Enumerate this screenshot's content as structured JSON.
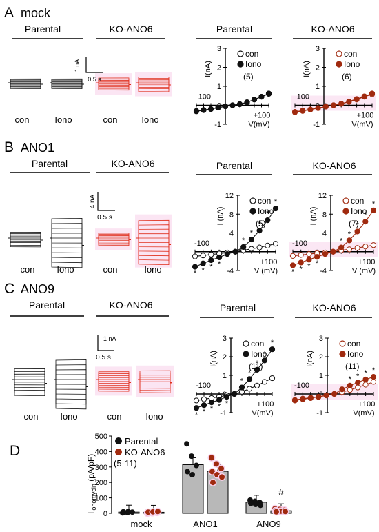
{
  "colors": {
    "parental": "#111111",
    "ko": "#a02a0f",
    "ko_trace": "#e0301e",
    "highlight": "#f7d0ea",
    "bar": "#b8b8b8"
  },
  "labels": {
    "parental": "Parental",
    "ko": "KO-ANO6",
    "con": "con",
    "iono": "Iono",
    "iono_lower": "Iono",
    "i_na": "I(nA)",
    "i_na_spaced": "I (nA)",
    "v_mv": "V(mV)",
    "v_mv_spaced": "V (mV)",
    "x_min": "-100",
    "x_max": "+100",
    "scale_1na": "1 nA",
    "scale_4na": "4 nA",
    "scale_05s": "0.5 s"
  },
  "panels": [
    {
      "letter": "A",
      "title": "mock",
      "scale_current": "1 nA",
      "scale_time": "0.5 s",
      "traces": {
        "parental_con_amp": 0.2,
        "parental_iono_amp": 0.2,
        "ko_con_amp": 0.25,
        "ko_iono_amp": 0.3
      },
      "iv_charts": [
        {
          "title": "Parental",
          "n": "(5)",
          "group": "parental",
          "ylabel": "I(nA)",
          "xlabel": "V(mV)",
          "ylim": [
            -1,
            3
          ],
          "yticks": [
            3,
            2,
            1,
            0,
            -1
          ],
          "xlim": [
            -100,
            100
          ],
          "x": [
            -100,
            -80,
            -60,
            -40,
            -20,
            0,
            20,
            40,
            60,
            80,
            100
          ],
          "series": [
            {
              "name": "con",
              "fill": false,
              "values": [
                -0.3,
                -0.25,
                -0.2,
                -0.12,
                -0.05,
                0.0,
                0.05,
                0.15,
                0.3,
                0.45,
                0.6
              ]
            },
            {
              "name": "Iono",
              "fill": true,
              "values": [
                -0.32,
                -0.26,
                -0.2,
                -0.13,
                -0.06,
                0.0,
                0.06,
                0.16,
                0.3,
                0.45,
                0.62
              ]
            }
          ],
          "stars": []
        },
        {
          "title": "KO-ANO6",
          "n": "(6)",
          "group": "ko",
          "ylabel": "I(nA)",
          "xlabel": "V(mV)",
          "ylim": [
            -1,
            3
          ],
          "yticks": [
            3,
            2,
            1,
            0,
            -1
          ],
          "xlim": [
            -100,
            100
          ],
          "x": [
            -100,
            -80,
            -60,
            -40,
            -20,
            0,
            20,
            40,
            60,
            80,
            100
          ],
          "series": [
            {
              "name": "con",
              "fill": false,
              "values": [
                -0.35,
                -0.28,
                -0.22,
                -0.15,
                -0.07,
                0.0,
                0.08,
                0.18,
                0.3,
                0.45,
                0.58
              ]
            },
            {
              "name": "Iono",
              "fill": true,
              "values": [
                -0.37,
                -0.3,
                -0.23,
                -0.15,
                -0.07,
                0.0,
                0.08,
                0.2,
                0.33,
                0.47,
                0.62
              ]
            }
          ],
          "stars": []
        }
      ]
    },
    {
      "letter": "B",
      "title": "ANO1",
      "scale_current": "4 nA",
      "scale_time": "0.5 s",
      "traces": {
        "parental_con_amp": 0.3,
        "parental_iono_amp": 1.0,
        "ko_con_amp": 0.25,
        "ko_iono_amp": 0.9
      },
      "iv_charts": [
        {
          "title": "Parental",
          "n": "(5)",
          "group": "parental",
          "ylabel": "I (nA)",
          "xlabel": "V (mV)",
          "ylim": [
            -4,
            12
          ],
          "yticks": [
            12,
            8,
            4,
            -4
          ],
          "xlim": [
            -100,
            100
          ],
          "x": [
            -100,
            -80,
            -60,
            -40,
            -20,
            0,
            20,
            40,
            60,
            80,
            100
          ],
          "series": [
            {
              "name": "con",
              "fill": false,
              "values": [
                -1.0,
                -0.8,
                -0.6,
                -0.4,
                -0.2,
                0.0,
                0.3,
                0.6,
                0.9,
                1.3,
                1.7
              ]
            },
            {
              "name": "Iono",
              "fill": true,
              "values": [
                -3.2,
                -2.5,
                -1.8,
                -1.2,
                -0.5,
                0.0,
                1.0,
                2.6,
                4.5,
                6.7,
                9.2
              ]
            }
          ],
          "stars": [
            -100,
            -80,
            -60,
            -40,
            20,
            40,
            60,
            80,
            100
          ]
        },
        {
          "title": "KO-ANO6",
          "n": "(7)",
          "group": "ko",
          "ylabel": "I (nA)",
          "xlabel": "V (mV)",
          "ylim": [
            -4,
            12
          ],
          "yticks": [
            12,
            8,
            4,
            -4
          ],
          "xlim": [
            -100,
            100
          ],
          "x": [
            -100,
            -80,
            -60,
            -40,
            -20,
            0,
            20,
            40,
            60,
            80,
            100
          ],
          "series": [
            {
              "name": "con",
              "fill": false,
              "values": [
                -0.9,
                -0.7,
                -0.5,
                -0.3,
                -0.2,
                0.0,
                0.3,
                0.5,
                0.8,
                1.1,
                1.4
              ]
            },
            {
              "name": "Iono",
              "fill": true,
              "values": [
                -2.9,
                -2.3,
                -1.7,
                -1.1,
                -0.5,
                0.0,
                0.9,
                2.4,
                4.3,
                6.4,
                8.8
              ]
            }
          ],
          "stars": [
            -100,
            -80,
            -60,
            -40,
            20,
            40,
            60,
            80,
            100
          ]
        }
      ]
    },
    {
      "letter": "C",
      "title": "ANO9",
      "scale_current": "1 nA",
      "scale_time": "0.5 s",
      "traces": {
        "parental_con_amp": 0.55,
        "parental_iono_amp": 1.0,
        "ko_con_amp": 0.4,
        "ko_iono_amp": 0.45
      },
      "iv_charts": [
        {
          "title": "Parental",
          "n": "(11)",
          "group": "parental",
          "ylabel": "I(nA)",
          "xlabel": "V(mV)",
          "ylim": [
            -1,
            3
          ],
          "yticks": [
            3,
            2,
            1,
            0,
            -1
          ],
          "xlim": [
            -100,
            100
          ],
          "x": [
            -100,
            -80,
            -60,
            -40,
            -20,
            0,
            20,
            40,
            60,
            80,
            100
          ],
          "series": [
            {
              "name": "con",
              "fill": false,
              "values": [
                -0.35,
                -0.28,
                -0.22,
                -0.15,
                -0.08,
                0.0,
                0.12,
                0.28,
                0.45,
                0.65,
                0.85
              ]
            },
            {
              "name": "Iono",
              "fill": true,
              "values": [
                -0.75,
                -0.6,
                -0.45,
                -0.32,
                -0.15,
                0.0,
                0.35,
                0.8,
                1.3,
                1.8,
                2.4
              ]
            }
          ],
          "stars": [
            -100,
            -80,
            -60,
            -40,
            -20,
            20,
            40,
            60,
            80,
            100
          ]
        },
        {
          "title": "KO-ANO6",
          "n": "(11)",
          "group": "ko",
          "ylabel": "I(nA)",
          "xlabel": "V(mV)",
          "ylim": [
            -1,
            3
          ],
          "yticks": [
            3,
            2,
            1,
            0,
            -1
          ],
          "xlim": [
            -100,
            100
          ],
          "x": [
            -100,
            -80,
            -60,
            -40,
            -20,
            0,
            20,
            40,
            60,
            80,
            100
          ],
          "series": [
            {
              "name": "con",
              "fill": false,
              "values": [
                -0.32,
                -0.25,
                -0.2,
                -0.15,
                -0.07,
                0.0,
                0.1,
                0.22,
                0.35,
                0.5,
                0.65
              ]
            },
            {
              "name": "Iono",
              "fill": true,
              "values": [
                -0.35,
                -0.28,
                -0.22,
                -0.16,
                -0.08,
                0.0,
                0.25,
                0.45,
                0.62,
                0.78,
                0.92
              ]
            }
          ],
          "stars": [
            40,
            60,
            80,
            100
          ]
        }
      ]
    }
  ],
  "chart_data": [
    {
      "type": "bar",
      "panel": "D",
      "ylabel": "Iionomycin (pA/pF)",
      "ylabel_main": "I",
      "ylabel_sub": "ionomycin",
      "ylabel_unit": " (pA/pF)",
      "ylim": [
        0,
        500
      ],
      "yticks": [
        0,
        100,
        200,
        300,
        400,
        500
      ],
      "categories": [
        "mock",
        "ANO1",
        "ANO9"
      ],
      "n_label": "(5-11)",
      "significance": {
        "ANO9": "#"
      },
      "series": [
        {
          "name": "Parental",
          "values": [
            8,
            315,
            72
          ],
          "points": [
            [
              3,
              5,
              8,
              10,
              12
            ],
            [
              450,
              370,
              310,
              270,
              250
            ],
            [
              85,
              78,
              70,
              64,
              58,
              52
            ]
          ]
        },
        {
          "name": "KO-ANO6",
          "values": [
            7,
            272,
            17
          ],
          "points": [
            [
              2,
              4,
              6,
              8,
              10,
              12
            ],
            [
              360,
              320,
              290,
              270,
              250,
              235,
              200
            ],
            [
              30,
              25,
              20,
              17,
              14,
              12,
              10
            ]
          ]
        }
      ]
    }
  ]
}
